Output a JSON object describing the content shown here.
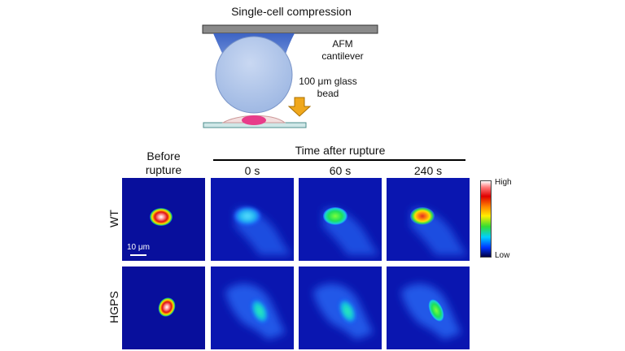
{
  "diagram": {
    "title": "Single-cell compression",
    "cantilever_label": "AFM cantilever",
    "bead_label": "100 μm glass bead",
    "arrow_color": "#f0a81c"
  },
  "figure": {
    "before_header": "Before rupture",
    "time_header": "Time after rupture",
    "time_points": [
      "0 s",
      "60 s",
      "240 s"
    ],
    "rows": [
      "WT",
      "HGPS"
    ],
    "scale_bar": "10 μm",
    "colorbar": {
      "high": "High",
      "low": "Low",
      "colormap": "jet"
    },
    "panels": {
      "WT": [
        {
          "timepoint": "Before rupture",
          "nucleus_intensity": 1.0
        },
        {
          "timepoint": "0 s",
          "nucleus_intensity": 0.45
        },
        {
          "timepoint": "60 s",
          "nucleus_intensity": 0.62
        },
        {
          "timepoint": "240 s",
          "nucleus_intensity": 0.85
        }
      ],
      "HGPS": [
        {
          "timepoint": "Before rupture",
          "nucleus_intensity": 1.0
        },
        {
          "timepoint": "0 s",
          "nucleus_intensity": 0.5
        },
        {
          "timepoint": "60 s",
          "nucleus_intensity": 0.52
        },
        {
          "timepoint": "240 s",
          "nucleus_intensity": 0.58
        }
      ]
    }
  }
}
